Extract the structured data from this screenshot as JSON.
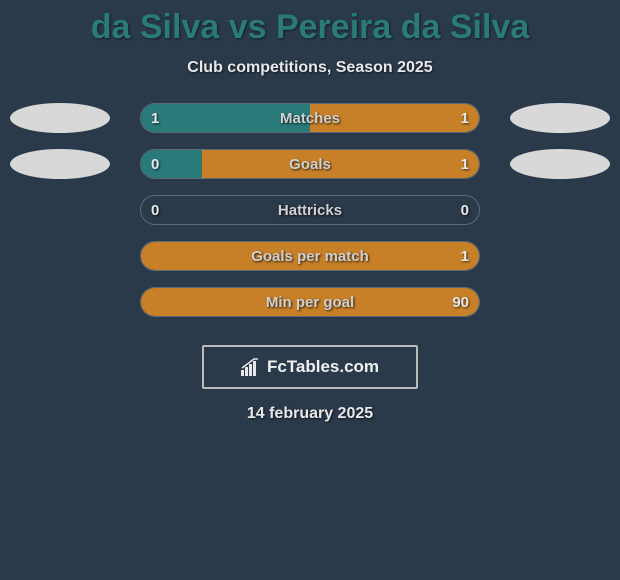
{
  "title": "da Silva vs Pereira da Silva",
  "subtitle": "Club competitions, Season 2025",
  "date": "14 february 2025",
  "footer_brand": "FcTables.com",
  "colors": {
    "background": "#2a3a4a",
    "title": "#2a7a7a",
    "left_fill": "#2a7a7a",
    "right_fill": "#c88028",
    "track_border": "#5a6a78",
    "logo_oval": "#d8d8d8",
    "text": "#e8e8e8"
  },
  "chart": {
    "type": "horizontal-comparison-bars",
    "track_width": 340,
    "track_height": 30,
    "border_radius": 15,
    "show_ovals_rows": [
      0,
      1
    ]
  },
  "stats": [
    {
      "label": "Matches",
      "left_val": "1",
      "right_val": "1",
      "left_pct": 50,
      "right_pct": 50
    },
    {
      "label": "Goals",
      "left_val": "0",
      "right_val": "1",
      "left_pct": 18,
      "right_pct": 82
    },
    {
      "label": "Hattricks",
      "left_val": "0",
      "right_val": "0",
      "left_pct": 0,
      "right_pct": 0
    },
    {
      "label": "Goals per match",
      "left_val": "",
      "right_val": "1",
      "left_pct": 0,
      "right_pct": 100
    },
    {
      "label": "Min per goal",
      "left_val": "",
      "right_val": "90",
      "left_pct": 0,
      "right_pct": 100
    }
  ]
}
